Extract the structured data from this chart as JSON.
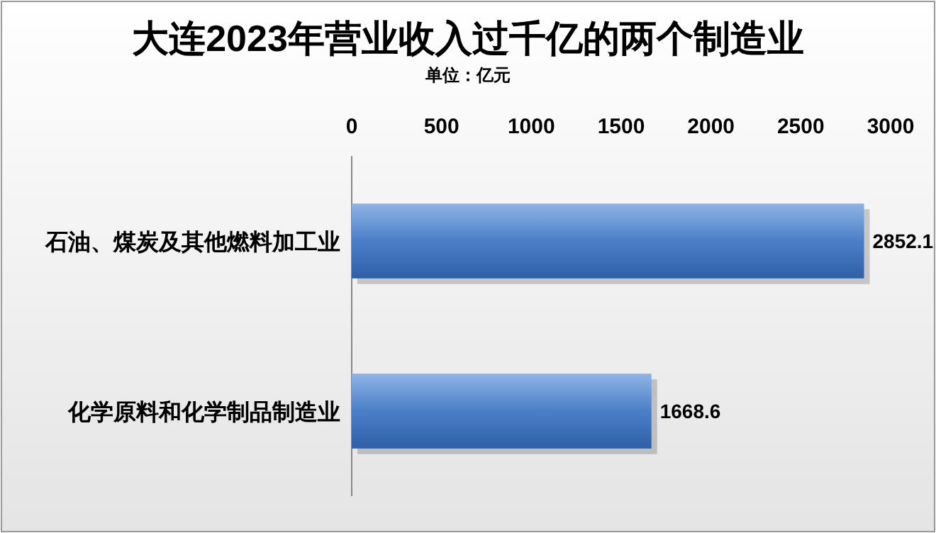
{
  "chart_data": {
    "type": "bar",
    "orientation": "horizontal",
    "title": "大连2023年营业收入过千亿的两个制造业",
    "subtitle": "单位：亿元",
    "categories": [
      "石油、煤炭及其他燃料加工业",
      "化学原料和化学制品制造业"
    ],
    "values": [
      2852.1,
      1668.6
    ],
    "color": "#4a7fc8",
    "xlim": [
      0,
      3000
    ],
    "xticks": [
      0,
      500,
      1000,
      1500,
      2000,
      2500,
      3000
    ],
    "data_labels": true
  }
}
